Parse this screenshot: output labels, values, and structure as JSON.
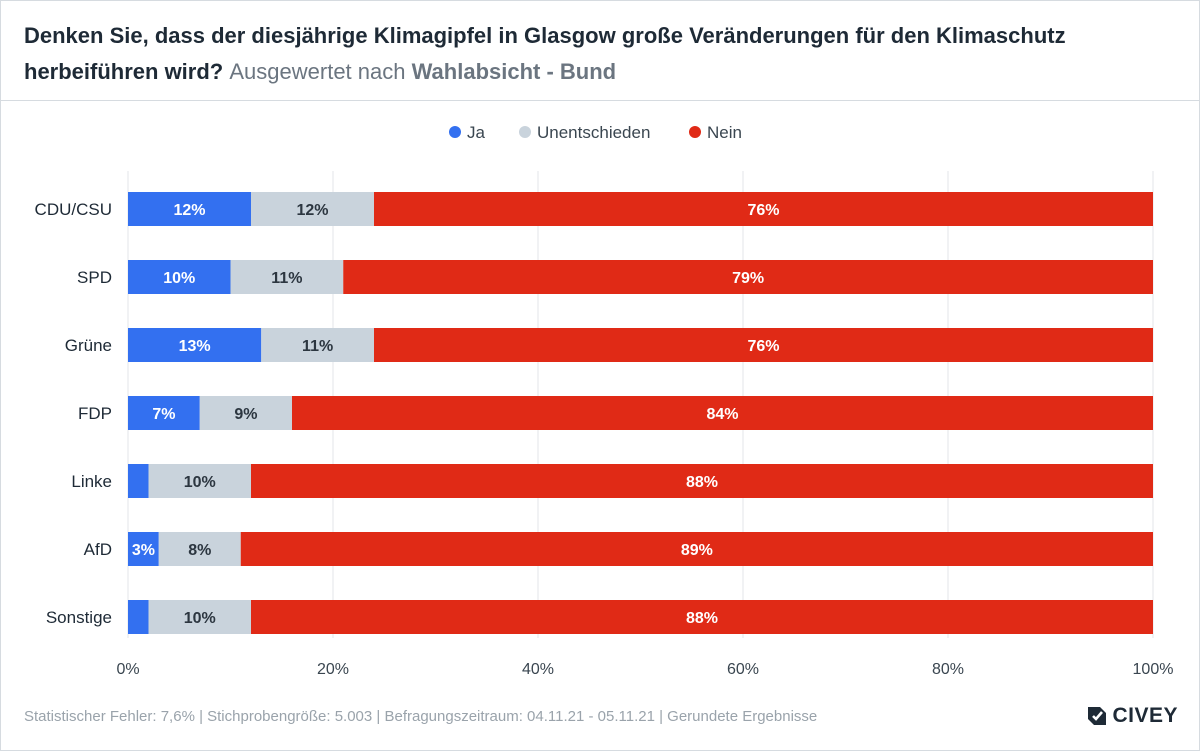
{
  "header": {
    "title_main": "Denken Sie, dass der diesjährige Klimagipfel in Glasgow große Veränderungen für den Klimaschutz herbeiführen wird?",
    "title_sub_prefix": "Ausgewertet nach",
    "title_sub_bold": "Wahlabsicht - Bund"
  },
  "footer": {
    "text": "Statistischer Fehler: 7,6% | Stichprobengröße: 5.003 | Befragungszeitraum: 04.11.21 - 05.11.21 | Gerundete Ergebnisse"
  },
  "logo": {
    "text": "CIVEY"
  },
  "colors": {
    "ja": "#3370f0",
    "unentschieden": "#c9d3dc",
    "nein": "#e02a16",
    "grid": "#e3e6ea"
  },
  "chart_data": {
    "type": "bar",
    "orientation": "horizontal",
    "stacked": true,
    "categories": [
      "CDU/CSU",
      "SPD",
      "Grüne",
      "FDP",
      "Linke",
      "AfD",
      "Sonstige"
    ],
    "series": [
      {
        "name": "Ja",
        "key": "ja",
        "values": [
          12,
          10,
          13,
          7,
          2,
          3,
          2
        ],
        "labels": [
          "12%",
          "10%",
          "13%",
          "7%",
          "",
          "3%",
          ""
        ]
      },
      {
        "name": "Unentschieden",
        "key": "unentschieden",
        "values": [
          12,
          11,
          11,
          9,
          10,
          8,
          10
        ],
        "labels": [
          "12%",
          "11%",
          "11%",
          "9%",
          "10%",
          "8%",
          "10%"
        ]
      },
      {
        "name": "Nein",
        "key": "nein",
        "values": [
          76,
          79,
          76,
          84,
          88,
          89,
          88
        ],
        "labels": [
          "76%",
          "79%",
          "76%",
          "84%",
          "88%",
          "89%",
          "88%"
        ]
      }
    ],
    "xlim": [
      0,
      100
    ],
    "xticks": [
      0,
      20,
      40,
      60,
      80,
      100
    ],
    "xtick_labels": [
      "0%",
      "20%",
      "40%",
      "60%",
      "80%",
      "100%"
    ],
    "grid": true,
    "legend_position": "top-center"
  }
}
